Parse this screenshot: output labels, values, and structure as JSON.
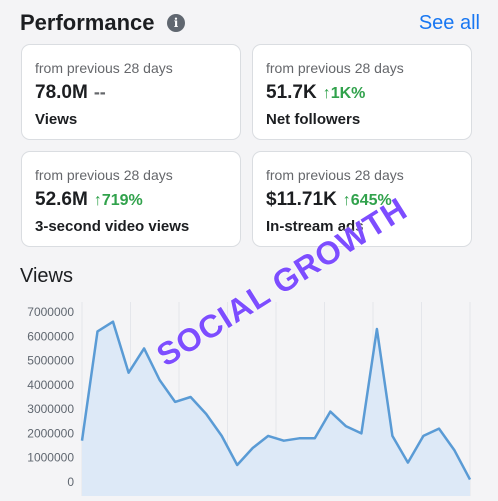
{
  "header": {
    "title": "Performance",
    "info_icon": "i",
    "see_all": "See all"
  },
  "cards": [
    {
      "sub": "from previous 28 days",
      "value": "78.0M",
      "delta": "--",
      "delta_kind": "neutral",
      "label": "Views"
    },
    {
      "sub": "from previous 28 days",
      "value": "51.7K",
      "delta": "↑1K%",
      "delta_kind": "up",
      "label": "Net followers"
    },
    {
      "sub": "from previous 28 days",
      "value": "52.6M",
      "delta": "↑719%",
      "delta_kind": "up",
      "label": "3-second video views"
    },
    {
      "sub": "from previous 28 days",
      "value": "$11.71K",
      "delta": "↑645%",
      "delta_kind": "up",
      "label": "In-stream ads"
    }
  ],
  "views_section": {
    "title": "Views"
  },
  "watermark": "SOCIAL GROWTH",
  "colors": {
    "accent": "#1877f2",
    "up": "#31a24c",
    "line": "#5a9bd5",
    "fill": "#dde9f7",
    "watermark": "#7d4dff"
  },
  "chart_data": {
    "type": "area",
    "y_ticks": [
      "7000000",
      "6000000",
      "5000000",
      "4000000",
      "3000000",
      "2000000",
      "1000000",
      "0"
    ],
    "ylim": [
      0,
      7500000
    ],
    "grid": true,
    "values": [
      1700000,
      6200000,
      6600000,
      4500000,
      5500000,
      4200000,
      3300000,
      3500000,
      2800000,
      1900000,
      700000,
      1400000,
      1900000,
      1700000,
      1800000,
      1800000,
      2900000,
      2300000,
      2000000,
      6300000,
      1900000,
      800000,
      1900000,
      2200000,
      1300000,
      100000
    ]
  }
}
